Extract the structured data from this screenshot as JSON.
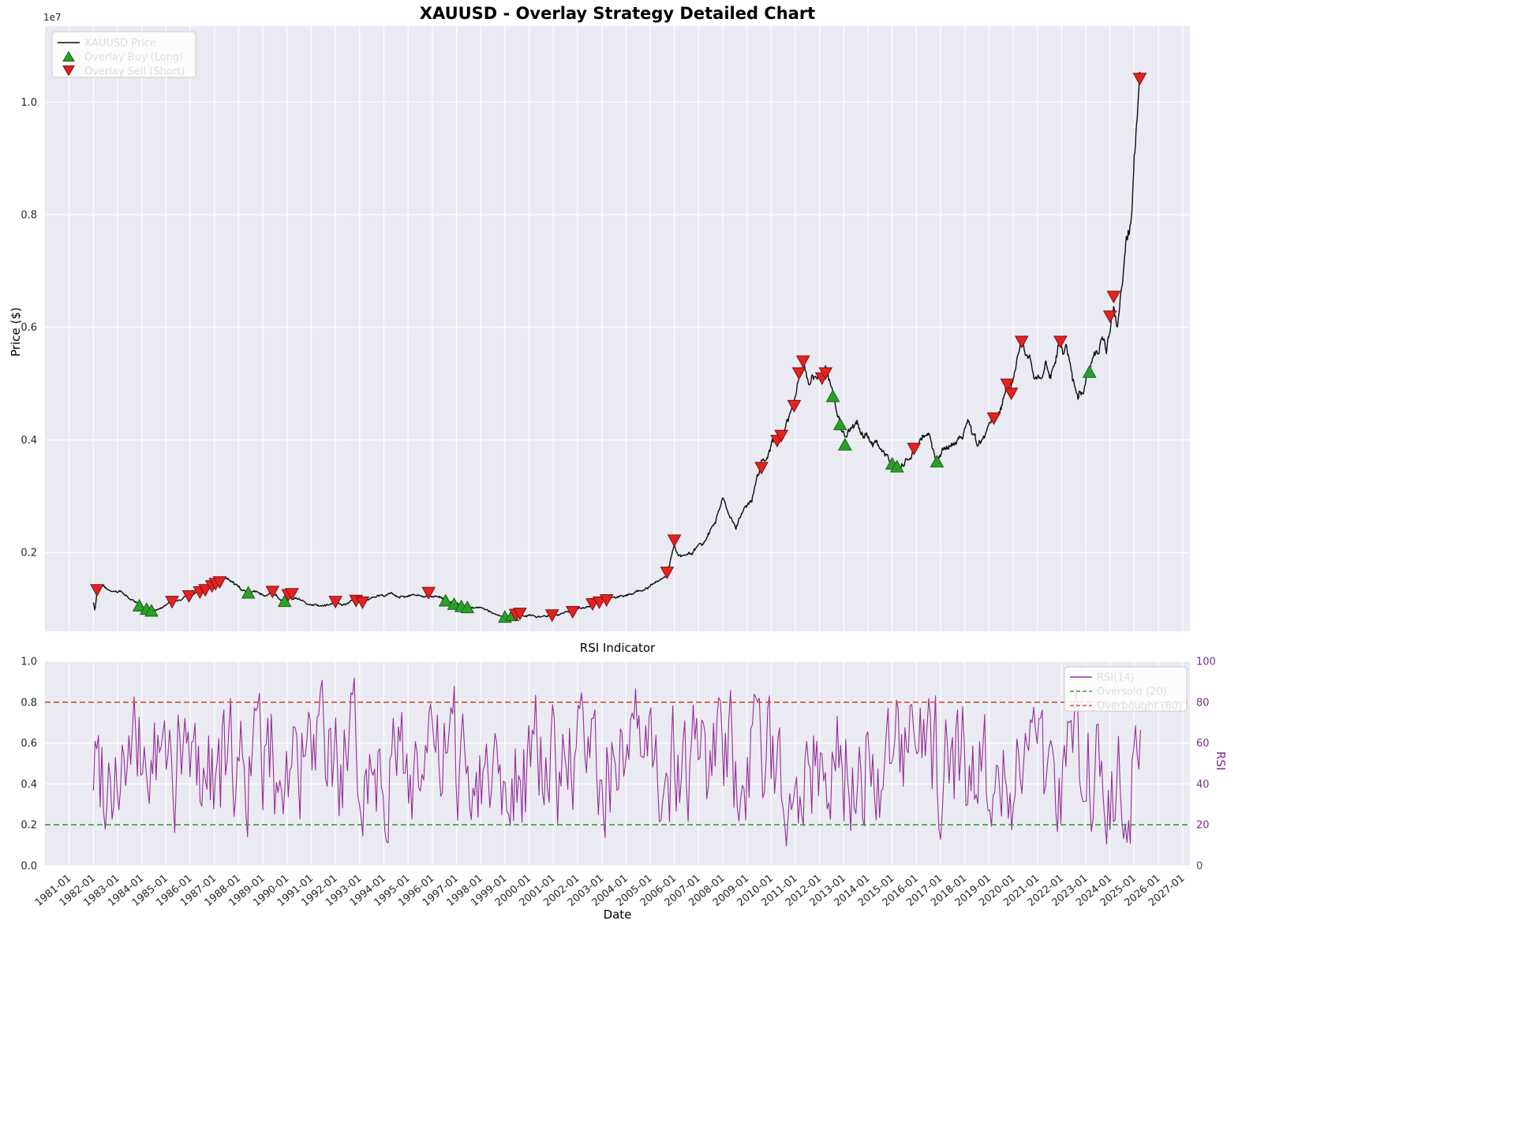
{
  "style": {
    "figure_bg": "#ffffff",
    "axes_bg": "#eaeaf2",
    "grid_color": "#ffffff",
    "tick_color": "#262626",
    "rsi_axis_color": "#7a2d8a",
    "legend_bg": "rgba(255,255,255,0.85)",
    "legend_border": "#cccccc"
  },
  "xticks": [
    "1981-01",
    "1982-01",
    "1983-01",
    "1984-01",
    "1985-01",
    "1986-01",
    "1987-01",
    "1988-01",
    "1989-01",
    "1990-01",
    "1991-01",
    "1992-01",
    "1993-01",
    "1994-01",
    "1995-01",
    "1996-01",
    "1997-01",
    "1998-01",
    "1999-01",
    "2000-01",
    "2001-01",
    "2002-01",
    "2003-01",
    "2004-01",
    "2005-01",
    "2006-01",
    "2007-01",
    "2008-01",
    "2009-01",
    "2010-01",
    "2011-01",
    "2012-01",
    "2013-01",
    "2014-01",
    "2015-01",
    "2016-01",
    "2017-01",
    "2018-01",
    "2019-01",
    "2020-01",
    "2021-01",
    "2022-01",
    "2023-01",
    "2024-01",
    "2025-01",
    "2026-01",
    "2027-01"
  ],
  "chart_data": [
    {
      "type": "line",
      "title": "XAUUSD - Overlay Strategy Detailed Chart",
      "ylabel": "Price ($)",
      "offset_text": "1e7",
      "xlim": [
        1980,
        2027.3
      ],
      "ylim_1e7": [
        0.06,
        1.135
      ],
      "yticks": [
        "0.2",
        "0.4",
        "0.6",
        "0.8",
        "1.0"
      ],
      "grid": true,
      "legend_position": "upper-left",
      "series": [
        {
          "name": "XAUUSD Price",
          "color": "#0d0d0d",
          "units": "USD x 1e7",
          "keyframes": [
            [
              1982.0,
              0.112
            ],
            [
              1982.06,
              0.097
            ],
            [
              1982.15,
              0.133
            ],
            [
              1982.4,
              0.139
            ],
            [
              1982.7,
              0.129
            ],
            [
              1983.1,
              0.131
            ],
            [
              1983.5,
              0.118
            ],
            [
              1983.9,
              0.106
            ],
            [
              1984.2,
              0.099
            ],
            [
              1984.4,
              0.096
            ],
            [
              1984.7,
              0.102
            ],
            [
              1985.0,
              0.107
            ],
            [
              1985.25,
              0.112
            ],
            [
              1985.6,
              0.115
            ],
            [
              1985.95,
              0.122
            ],
            [
              1986.3,
              0.128
            ],
            [
              1986.6,
              0.134
            ],
            [
              1986.9,
              0.141
            ],
            [
              1987.1,
              0.146
            ],
            [
              1987.4,
              0.152
            ],
            [
              1987.6,
              0.155
            ],
            [
              1987.85,
              0.147
            ],
            [
              1988.1,
              0.136
            ],
            [
              1988.4,
              0.128
            ],
            [
              1988.8,
              0.125
            ],
            [
              1989.1,
              0.126
            ],
            [
              1989.4,
              0.131
            ],
            [
              1989.7,
              0.121
            ],
            [
              1989.9,
              0.114
            ],
            [
              1990.1,
              0.126
            ],
            [
              1990.4,
              0.12
            ],
            [
              1990.7,
              0.114
            ],
            [
              1991.0,
              0.111
            ],
            [
              1991.5,
              0.108
            ],
            [
              1992.0,
              0.113
            ],
            [
              1992.4,
              0.107
            ],
            [
              1992.8,
              0.114
            ],
            [
              1993.1,
              0.111
            ],
            [
              1993.5,
              0.115
            ],
            [
              1993.9,
              0.122
            ],
            [
              1994.4,
              0.124
            ],
            [
              1995.0,
              0.122
            ],
            [
              1995.5,
              0.125
            ],
            [
              1995.85,
              0.129
            ],
            [
              1996.2,
              0.122
            ],
            [
              1996.55,
              0.114
            ],
            [
              1996.9,
              0.108
            ],
            [
              1997.2,
              0.104
            ],
            [
              1997.6,
              0.101
            ],
            [
              1998.0,
              0.097
            ],
            [
              1998.5,
              0.091
            ],
            [
              1999.0,
              0.085
            ],
            [
              1999.3,
              0.088
            ],
            [
              1999.6,
              0.091
            ],
            [
              2000.0,
              0.09
            ],
            [
              2000.5,
              0.087
            ],
            [
              2000.95,
              0.089
            ],
            [
              2001.4,
              0.091
            ],
            [
              2001.8,
              0.095
            ],
            [
              2002.2,
              0.101
            ],
            [
              2002.6,
              0.109
            ],
            [
              2002.9,
              0.112
            ],
            [
              2003.2,
              0.115
            ],
            [
              2003.6,
              0.118
            ],
            [
              2004.1,
              0.126
            ],
            [
              2004.6,
              0.132
            ],
            [
              2005.1,
              0.139
            ],
            [
              2005.5,
              0.15
            ],
            [
              2005.7,
              0.164
            ],
            [
              2005.9,
              0.2
            ],
            [
              2006.0,
              0.221
            ],
            [
              2006.2,
              0.195
            ],
            [
              2006.5,
              0.198
            ],
            [
              2006.9,
              0.208
            ],
            [
              2007.3,
              0.222
            ],
            [
              2007.7,
              0.248
            ],
            [
              2008.0,
              0.298
            ],
            [
              2008.25,
              0.272
            ],
            [
              2008.55,
              0.238
            ],
            [
              2008.85,
              0.272
            ],
            [
              2009.2,
              0.298
            ],
            [
              2009.6,
              0.35
            ],
            [
              2010.0,
              0.386
            ],
            [
              2010.3,
              0.402
            ],
            [
              2010.6,
              0.428
            ],
            [
              2010.95,
              0.46
            ],
            [
              2011.15,
              0.518
            ],
            [
              2011.35,
              0.544
            ],
            [
              2011.55,
              0.502
            ],
            [
              2011.8,
              0.512
            ],
            [
              2012.05,
              0.508
            ],
            [
              2012.25,
              0.518
            ],
            [
              2012.55,
              0.478
            ],
            [
              2012.85,
              0.428
            ],
            [
              2013.05,
              0.392
            ],
            [
              2013.3,
              0.408
            ],
            [
              2013.55,
              0.42
            ],
            [
              2013.9,
              0.406
            ],
            [
              2014.3,
              0.396
            ],
            [
              2014.7,
              0.376
            ],
            [
              2015.0,
              0.358
            ],
            [
              2015.2,
              0.353
            ],
            [
              2015.5,
              0.36
            ],
            [
              2015.9,
              0.384
            ],
            [
              2016.2,
              0.404
            ],
            [
              2016.5,
              0.418
            ],
            [
              2016.85,
              0.362
            ],
            [
              2017.1,
              0.376
            ],
            [
              2017.5,
              0.396
            ],
            [
              2017.9,
              0.41
            ],
            [
              2018.15,
              0.42
            ],
            [
              2018.5,
              0.384
            ],
            [
              2018.9,
              0.41
            ],
            [
              2019.2,
              0.438
            ],
            [
              2019.5,
              0.464
            ],
            [
              2019.75,
              0.498
            ],
            [
              2019.9,
              0.482
            ],
            [
              2020.1,
              0.515
            ],
            [
              2020.35,
              0.574
            ],
            [
              2020.6,
              0.546
            ],
            [
              2020.85,
              0.525
            ],
            [
              2021.1,
              0.507
            ],
            [
              2021.35,
              0.544
            ],
            [
              2021.55,
              0.522
            ],
            [
              2021.75,
              0.552
            ],
            [
              2021.95,
              0.574
            ],
            [
              2022.2,
              0.552
            ],
            [
              2022.45,
              0.505
            ],
            [
              2022.65,
              0.472
            ],
            [
              2022.9,
              0.496
            ],
            [
              2023.15,
              0.52
            ],
            [
              2023.45,
              0.56
            ],
            [
              2023.7,
              0.585
            ],
            [
              2023.85,
              0.566
            ],
            [
              2024.0,
              0.618
            ],
            [
              2024.15,
              0.654
            ],
            [
              2024.3,
              0.628
            ],
            [
              2024.5,
              0.7
            ],
            [
              2024.65,
              0.748
            ],
            [
              2024.8,
              0.772
            ],
            [
              2024.9,
              0.82
            ],
            [
              2025.0,
              0.9
            ],
            [
              2025.1,
              0.952
            ],
            [
              2025.18,
              1.02
            ],
            [
              2025.23,
              1.088
            ],
            [
              2025.27,
              1.045
            ]
          ]
        }
      ],
      "markers": {
        "buy": {
          "name": "Overlay Buy (Long)",
          "shape": "triangle-up",
          "color": "#2aa02a",
          "edge": "#146414",
          "points": [
            [
              1983.9,
              0.105
            ],
            [
              1984.2,
              0.099
            ],
            [
              1984.4,
              0.096
            ],
            [
              1988.4,
              0.128
            ],
            [
              1989.9,
              0.113
            ],
            [
              1996.55,
              0.114
            ],
            [
              1996.9,
              0.108
            ],
            [
              1997.2,
              0.104
            ],
            [
              1997.45,
              0.102
            ],
            [
              1999.0,
              0.085
            ],
            [
              1999.3,
              0.088
            ],
            [
              2012.55,
              0.477
            ],
            [
              2012.85,
              0.427
            ],
            [
              2013.05,
              0.391
            ],
            [
              2015.0,
              0.357
            ],
            [
              2015.2,
              0.352
            ],
            [
              2016.85,
              0.361
            ],
            [
              2023.15,
              0.52
            ]
          ]
        },
        "sell": {
          "name": "Overlay Sell (Short)",
          "shape": "triangle-down",
          "color": "#e42320",
          "edge": "#7d0f0f",
          "points": [
            [
              1982.15,
              0.134
            ],
            [
              1985.25,
              0.113
            ],
            [
              1985.95,
              0.123
            ],
            [
              1986.4,
              0.13
            ],
            [
              1986.62,
              0.134
            ],
            [
              1986.9,
              0.141
            ],
            [
              1987.05,
              0.145
            ],
            [
              1987.22,
              0.148
            ],
            [
              1989.4,
              0.131
            ],
            [
              1990.05,
              0.125
            ],
            [
              1990.2,
              0.127
            ],
            [
              1992.0,
              0.113
            ],
            [
              1992.85,
              0.115
            ],
            [
              1993.12,
              0.112
            ],
            [
              1995.85,
              0.129
            ],
            [
              1999.45,
              0.09
            ],
            [
              1999.62,
              0.092
            ],
            [
              2000.95,
              0.089
            ],
            [
              2001.8,
              0.095
            ],
            [
              2002.62,
              0.109
            ],
            [
              2002.9,
              0.112
            ],
            [
              2003.2,
              0.116
            ],
            [
              2005.7,
              0.165
            ],
            [
              2006.0,
              0.222
            ],
            [
              2009.6,
              0.351
            ],
            [
              2010.25,
              0.399
            ],
            [
              2010.42,
              0.408
            ],
            [
              2010.95,
              0.461
            ],
            [
              2011.15,
              0.519
            ],
            [
              2011.32,
              0.54
            ],
            [
              2012.1,
              0.51
            ],
            [
              2012.25,
              0.519
            ],
            [
              2015.9,
              0.385
            ],
            [
              2019.2,
              0.439
            ],
            [
              2019.75,
              0.499
            ],
            [
              2019.92,
              0.483
            ],
            [
              2020.35,
              0.575
            ],
            [
              2021.95,
              0.575
            ],
            [
              2024.0,
              0.62
            ],
            [
              2024.15,
              0.655
            ],
            [
              2025.23,
              1.042
            ]
          ]
        }
      }
    },
    {
      "type": "line",
      "title": "RSI Indicator",
      "xlabel": "Date",
      "ylabel_right": "RSI",
      "xlim": [
        1980,
        2027.3
      ],
      "ylim": [
        0,
        1
      ],
      "ylim_right": [
        0,
        100
      ],
      "yticks_left": [
        "0.0",
        "0.2",
        "0.4",
        "0.6",
        "0.8",
        "1.0"
      ],
      "yticks_right": [
        "0",
        "20",
        "40",
        "60",
        "80",
        "100"
      ],
      "grid": true,
      "legend_position": "upper-right",
      "series": [
        {
          "name": "RSI(14)",
          "color": "#952e95",
          "period": 14,
          "typical_range": [
            0.12,
            0.92
          ],
          "mean": 0.5
        }
      ],
      "thresholds": [
        {
          "name": "Oversold (20)",
          "value": 0.2,
          "color": "#3a9a3a",
          "style": "dashed"
        },
        {
          "name": "Overbought (80)",
          "value": 0.8,
          "color": "#dc4a41",
          "style": "dashed"
        }
      ]
    }
  ]
}
